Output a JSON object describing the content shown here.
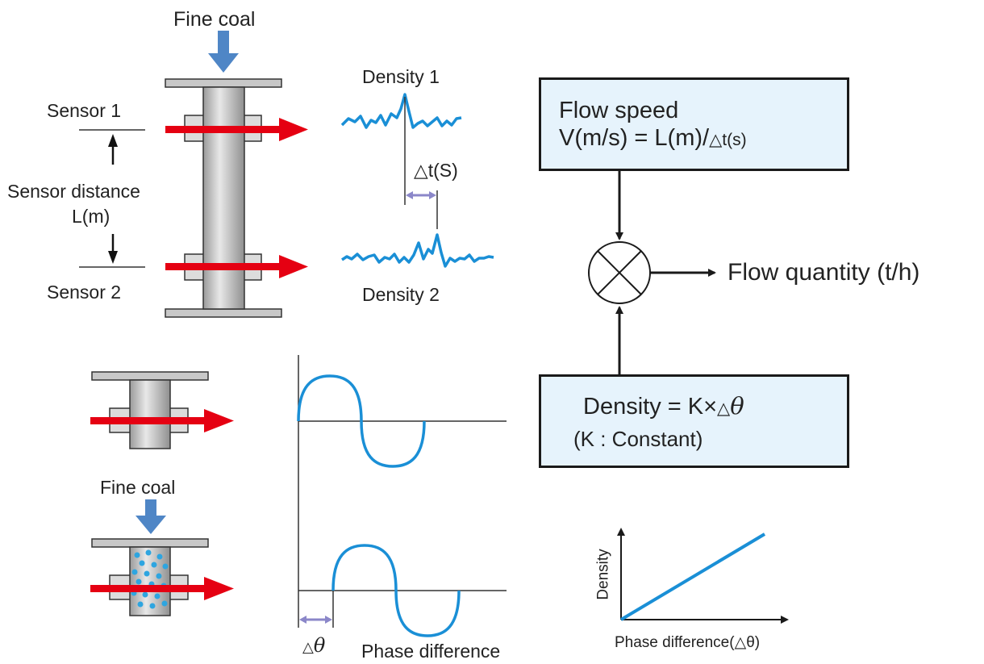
{
  "labels": {
    "fine_coal_top": "Fine coal",
    "sensor1": "Sensor 1",
    "sensor2": "Sensor 2",
    "sensor_distance": "Sensor distance",
    "sensor_distance_unit": "L(m)",
    "density1": "Density 1",
    "density2": "Density 2",
    "delta_t": "△t(S)",
    "fine_coal_bottom": "Fine coal",
    "delta_symbol": "△",
    "theta_symbol": "θ",
    "phase_difference": "Phase difference"
  },
  "flow_speed_box": {
    "title": "Flow speed",
    "formula_main": "V(m/s) = L(m)/",
    "formula_small": "△t(s)"
  },
  "density_box": {
    "formula": "Density = K×",
    "delta": "△",
    "theta": "θ",
    "note": "(K : Constant)"
  },
  "output": {
    "label": "Flow quantity (t/h)"
  },
  "mini_graph": {
    "ylabel": "Density",
    "xlabel": "Phase difference(△θ)"
  },
  "colors": {
    "red_arrow": "#e50012",
    "blue_arrow": "#4f86c6",
    "signal_blue": "#1a8fd6",
    "box_fill": "#e6f3fc",
    "dots": "#2ea5e0",
    "purple_arrow": "#8b87c9"
  }
}
